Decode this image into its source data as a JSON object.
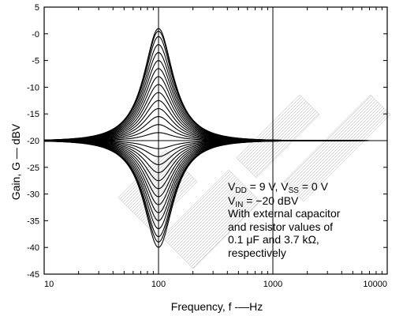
{
  "chart_data": {
    "type": "line",
    "xlabel": "Frequency, f -—Hz",
    "ylabel": "Gain, G — dBV",
    "x_scale": "log",
    "xlim": [
      10,
      10000
    ],
    "ylim": [
      -45,
      5
    ],
    "grid": true,
    "x_ticks": [
      "10",
      "100",
      "1000",
      "10000"
    ],
    "y_ticks": [
      "5",
      "-0",
      "-5",
      "-10",
      "-15",
      "-20",
      "-25",
      "-30",
      "-35",
      "-40",
      "-45"
    ],
    "center_frequency_hz": 100,
    "baseline_gain_dbv": -20,
    "curves_peak_gain_dbv": [
      -20,
      -18.5,
      -17,
      -15.5,
      -14,
      -12.5,
      -11,
      -9.5,
      -8,
      -6.5,
      -5,
      -3.5,
      -2,
      -0.5,
      0.5,
      1.0
    ],
    "curves_cut_gain_dbv": [
      -21.5,
      -23,
      -24.5,
      -26,
      -27.5,
      -29,
      -30.5,
      -32,
      -33.5,
      -35,
      -36.5,
      -38,
      -39,
      -40
    ],
    "annotation": {
      "line1_main": "V",
      "line1_sub1": "DD",
      "line1_mid": " = 9 V, V",
      "line1_sub2": "SS",
      "line1_end": " = 0 V",
      "line2_main": "V",
      "line2_sub": "IN",
      "line2_end": " = −20 dBV",
      "line3": "With external capacitor",
      "line4": "and resistor values of",
      "line5": "0.1 μF and 3.7 kΩ,",
      "line6": "respectively"
    }
  }
}
